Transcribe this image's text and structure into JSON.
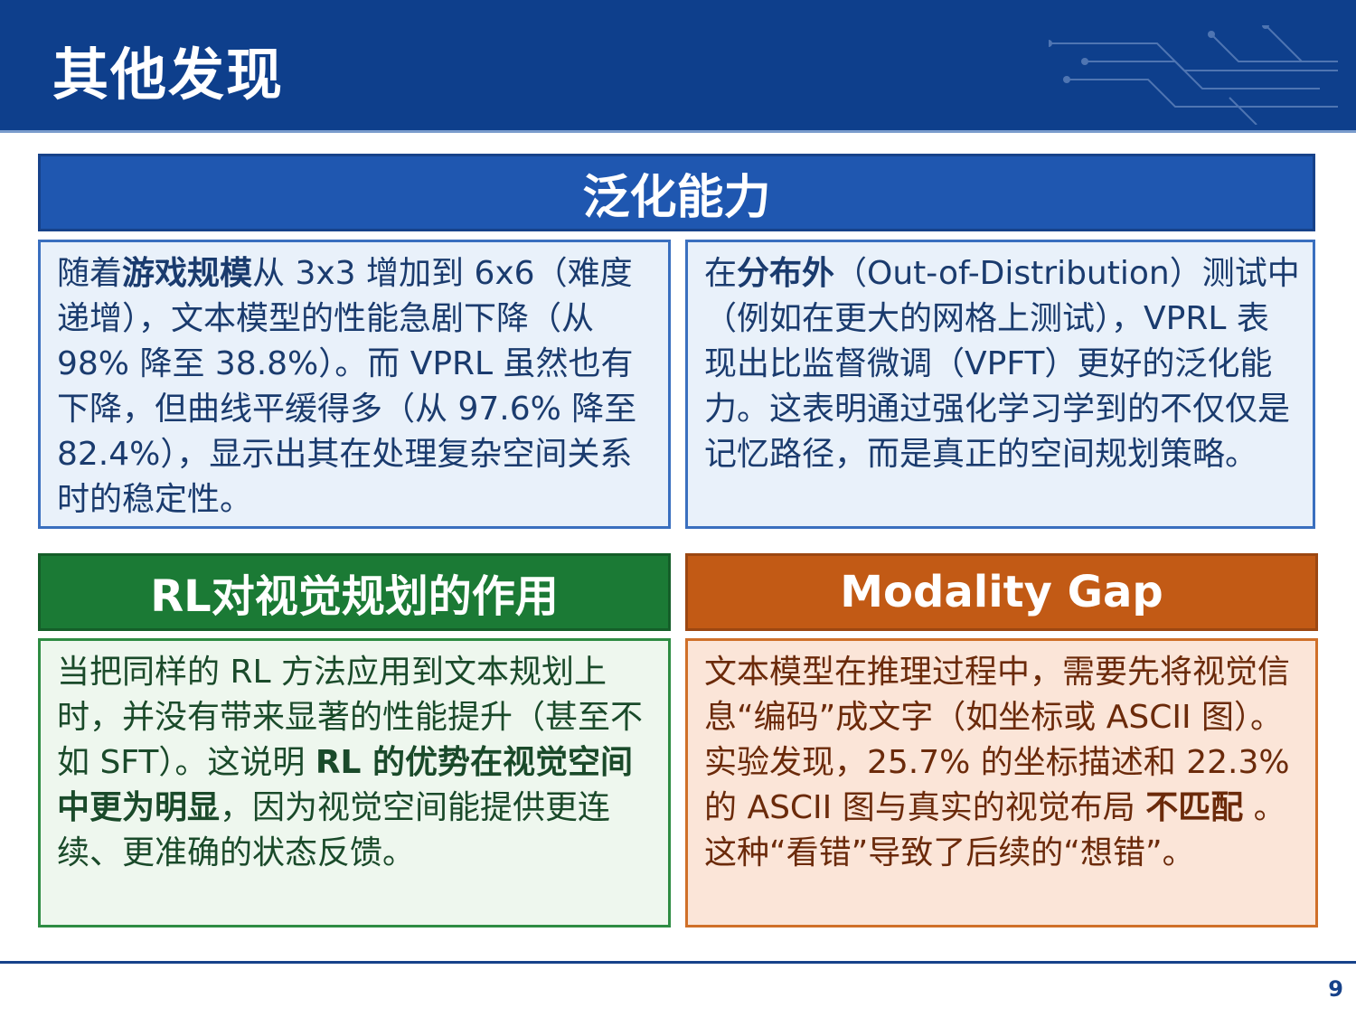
{
  "header": {
    "title": "其他发现"
  },
  "sections": {
    "generalization": {
      "title": "泛化能力",
      "left": {
        "p1": "随着",
        "b1": "游戏规模",
        "p2": "从 3x3 增加到 6x6（难度递增），文本模型的性能急剧下降（从 98% 降至 38.8%）。而 VPRL 虽然也有下降，但曲线平缓得多（从 97.6% 降至 82.4%），显示出其在处理复杂空间关系时的稳定性。"
      },
      "right": {
        "p1": "在",
        "b1": "分布外",
        "p2": "（Out-of-Distribution）测试中（例如在更大的网格上测试），VPRL 表现出比监督微调（VPFT）更好的泛化能力。这表明通过强化学习学到的不仅仅是记忆路径，而是真正的空间规划策略。"
      }
    },
    "rl_effect": {
      "title": "RL对视觉规划的作用",
      "p1": "当把同样的 RL 方法应用到文本规划上时，并没有带来显著的性能提升（甚至不如 SFT）。这说明 ",
      "b1": "RL 的优势在视觉空间中更为明显",
      "p2": "，因为视觉空间能提供更连续、更准确的状态反馈。"
    },
    "modality_gap": {
      "title": "Modality Gap",
      "p1": "文本模型在推理过程中，需要先将视觉信息“编码”成文字（如坐标或 ASCII 图）。实验发现，25.7% 的坐标描述和 22.3% 的 ASCII 图与真实的视觉布局 ",
      "b1": "不匹配",
      "p2": " 。这种“看错”导致了后续的“想错”。"
    }
  },
  "footer": {
    "page_number": "9"
  },
  "colors": {
    "header_bg": "#0e3f8c",
    "blue": "#1f57b0",
    "green": "#1b7a35",
    "orange": "#c25a15"
  }
}
